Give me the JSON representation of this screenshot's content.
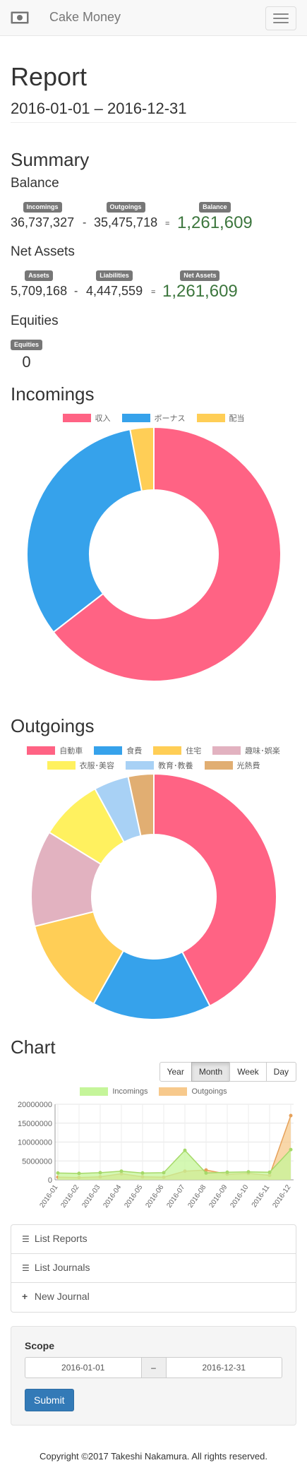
{
  "navbar": {
    "brand": "Cake Money",
    "brand_icon": "banknote-icon",
    "menu_icon": "hamburger-icon"
  },
  "report": {
    "title": "Report",
    "date_range": "2016-01-01 – 2016-12-31"
  },
  "summary": {
    "heading": "Summary",
    "balance": {
      "heading": "Balance",
      "incomings_label": "Incomings",
      "incomings": "36,737,327",
      "minus": "-",
      "outgoings_label": "Outgoings",
      "outgoings": "35,475,718",
      "equals": "=",
      "balance_label": "Balance",
      "balance": "1,261,609"
    },
    "net_assets": {
      "heading": "Net Assets",
      "assets_label": "Assets",
      "assets": "5,709,168",
      "minus": "-",
      "liabilities_label": "Liabilities",
      "liabilities": "4,447,559",
      "equals": "=",
      "net_label": "Net Assets",
      "net": "1,261,609"
    },
    "equities": {
      "heading": "Equities",
      "label": "Equities",
      "value": "0"
    }
  },
  "incomings": {
    "heading": "Incomings"
  },
  "outgoings": {
    "heading": "Outgoings"
  },
  "chart_section": {
    "heading": "Chart",
    "periods": [
      "Year",
      "Month",
      "Week",
      "Day"
    ],
    "active_period": "Month"
  },
  "links": {
    "list_reports": "List Reports",
    "list_journals": "List Journals",
    "new_journal": "New Journal"
  },
  "scope": {
    "label": "Scope",
    "from": "2016-01-01",
    "separator": "–",
    "to": "2016-12-31",
    "submit": "Submit"
  },
  "footer": {
    "copyright": "Copyright ©2017 Takeshi Nakamura. All rights reserved."
  },
  "chart_data": [
    {
      "type": "pie",
      "donut": true,
      "labels": [
        "収入",
        "ボーナス",
        "配当"
      ],
      "values": [
        64.5,
        32.5,
        3.0
      ],
      "colors": [
        "#ff6384",
        "#36a2eb",
        "#ffce56"
      ],
      "legend": "top"
    },
    {
      "type": "pie",
      "donut": true,
      "labels": [
        "自動車",
        "食費",
        "住宅",
        "趣味･娯楽",
        "衣服･美容",
        "教育･教養",
        "光熱費"
      ],
      "values": [
        41.6,
        15.4,
        12.7,
        12.4,
        8.1,
        4.5,
        3.3
      ],
      "colors": [
        "#ff6384",
        "#36a2eb",
        "#ffce56",
        "#e2b2c0",
        "#fff15f",
        "#a8d1f5",
        "#e1ae72"
      ],
      "legend": "top"
    },
    {
      "type": "area",
      "categories": [
        "2016-01",
        "2016-02",
        "2016-03",
        "2016-04",
        "2016-05",
        "2016-06",
        "2016-07",
        "2016-08",
        "2016-09",
        "2016-10",
        "2016-11",
        "2016-12"
      ],
      "series": [
        {
          "name": "Incomings",
          "values": [
            1800000,
            1700000,
            1900000,
            2300000,
            1800000,
            1900000,
            7800000,
            1800000,
            2000000,
            2100000,
            2000000,
            8000000
          ],
          "color": "#c5f59a"
        },
        {
          "name": "Outgoings",
          "values": [
            700000,
            600000,
            800000,
            1600000,
            800000,
            700000,
            2300000,
            2600000,
            1500000,
            1700000,
            1200000,
            17000000
          ],
          "color": "#f7c98c"
        }
      ],
      "ylim": [
        0,
        20000000
      ],
      "yticks": [
        "20000000",
        "15000000",
        "10000000",
        "5000000",
        "0"
      ],
      "grid": true,
      "legend": "top"
    }
  ]
}
